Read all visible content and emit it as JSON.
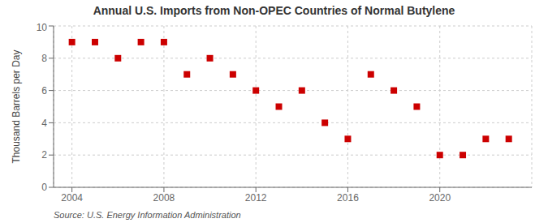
{
  "chart_data": {
    "type": "scatter",
    "title": "Annual U.S. Imports from Non-OPEC Countries of Normal Butylene",
    "ylabel": "Thousand Barrels per Day",
    "annotations": [
      "Source: U.S. Energy Information Administration"
    ],
    "x": [
      2004,
      2005,
      2006,
      2007,
      2008,
      2009,
      2010,
      2011,
      2012,
      2013,
      2014,
      2015,
      2016,
      2017,
      2018,
      2019,
      2020,
      2021,
      2022,
      2023
    ],
    "values": [
      9,
      9,
      8,
      9,
      9,
      7,
      8,
      7,
      6,
      5,
      6,
      4,
      3,
      7,
      6,
      5,
      2,
      2,
      3,
      3
    ],
    "color": "#cc0000",
    "marker": "square",
    "xlim": [
      2003.2,
      2024
    ],
    "xticks": [
      2004,
      2008,
      2012,
      2016,
      2020
    ],
    "ylim": [
      0,
      10
    ],
    "yticks": [
      0,
      2,
      4,
      6,
      8,
      10
    ],
    "grid": true
  }
}
